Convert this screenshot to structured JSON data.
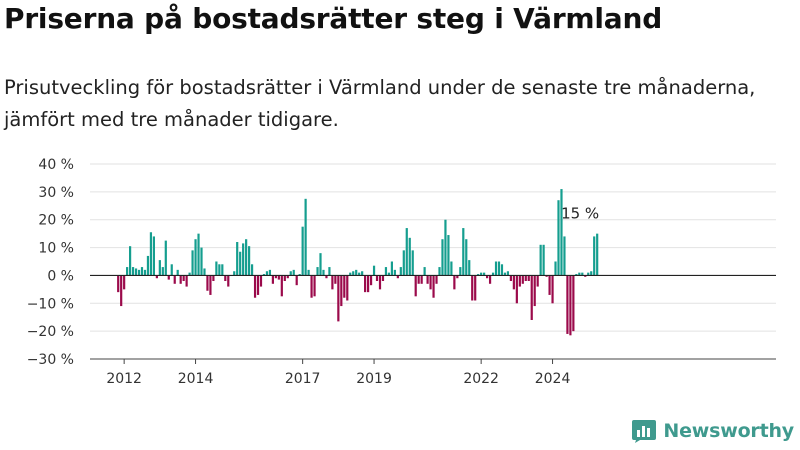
{
  "title": "Priserna på bostadsrätter steg i Värmland",
  "subtitle": "Prisutveckling för bostadsrätter i Värmland under de senaste tre månaderna, jämfört med tre månader tidigare.",
  "brand": {
    "name": "Newsworthy",
    "color": "#3f9a8e"
  },
  "chart_data": {
    "type": "bar",
    "start": "2011-11",
    "ylim": [
      -30,
      40
    ],
    "yticks": [
      40,
      30,
      20,
      10,
      0,
      -10,
      -20,
      -30
    ],
    "ytick_labels": [
      "40 %",
      "30 %",
      "20 %",
      "10 %",
      "0 %",
      "−10 %",
      "−20 %",
      "−30 %"
    ],
    "xticks": [
      {
        "label": "2012",
        "date": "2012-01"
      },
      {
        "label": "2014",
        "date": "2014-01"
      },
      {
        "label": "2017",
        "date": "2017-01"
      },
      {
        "label": "2019",
        "date": "2019-01"
      },
      {
        "label": "2022",
        "date": "2022-01"
      },
      {
        "label": "2024",
        "date": "2024-01"
      }
    ],
    "colors": {
      "positive": "#159e8f",
      "negative": "#9b0a4b"
    },
    "grid": true,
    "annotation": {
      "label": "15 %",
      "value": 15
    },
    "values": [
      -6,
      -11,
      -5,
      3,
      10.5,
      3,
      2.5,
      2,
      3,
      2,
      7,
      15.5,
      14,
      -1,
      5.5,
      3,
      12.5,
      -1.5,
      4,
      -3,
      2,
      -3,
      -2,
      -4,
      1,
      9,
      13,
      15,
      10,
      2.5,
      -5.5,
      -7,
      -2,
      5,
      4,
      4,
      -2,
      -4,
      0,
      1.5,
      12,
      8.5,
      11.5,
      13,
      10.5,
      4,
      -8,
      -7,
      -4,
      0.5,
      1.5,
      2,
      -3,
      -1,
      -1.5,
      -7.5,
      -2,
      -1,
      1.5,
      2,
      -3.5,
      0.5,
      17.5,
      27.5,
      2,
      -8,
      -7.5,
      3,
      8,
      2,
      -1,
      3,
      -5,
      -3,
      -16.5,
      -11,
      -8,
      -9,
      1,
      1.5,
      2,
      1,
      1.5,
      -6,
      -6,
      -3.5,
      3.5,
      -2,
      -5,
      -2,
      3,
      1,
      5,
      2,
      -1,
      3,
      9,
      17,
      13.5,
      9,
      -7.5,
      -3,
      -3,
      3,
      -3,
      -5,
      -8,
      -3,
      3,
      13,
      20,
      14.5,
      5,
      -5,
      -1,
      3,
      17,
      13,
      5.5,
      -9,
      -9,
      0.5,
      1,
      1,
      -1,
      -3,
      1,
      5,
      5,
      4,
      1,
      1.5,
      -2,
      -5,
      -10,
      -4,
      -3,
      -2,
      -2,
      -16,
      -11,
      -4,
      11,
      11,
      -0.5,
      -7,
      -10,
      5,
      27,
      31,
      14,
      -21,
      -21.5,
      -20,
      0.5,
      1,
      1,
      -0.5,
      1,
      1.5,
      14,
      15
    ]
  }
}
